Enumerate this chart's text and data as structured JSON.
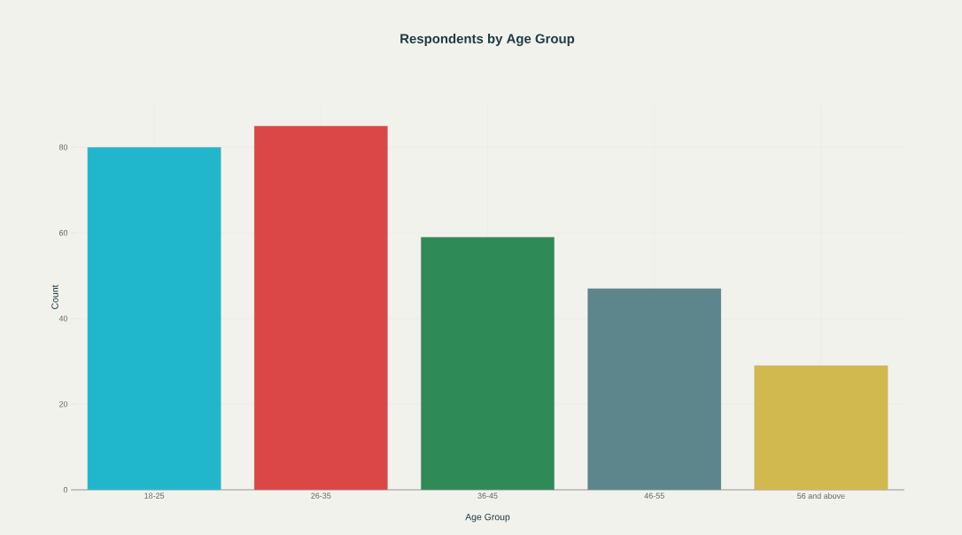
{
  "chart_data": {
    "type": "bar",
    "title": "Respondents by Age Group",
    "xlabel": "Age Group",
    "ylabel": "Count",
    "categories": [
      "18-25",
      "26-35",
      "36-45",
      "46-55",
      "56 and above"
    ],
    "values": [
      80,
      85,
      59,
      47,
      29
    ],
    "colors": [
      "#20b7cc",
      "#db4647",
      "#2e8a57",
      "#5c858c",
      "#d2b94f"
    ],
    "ylim": [
      0,
      90
    ],
    "yticks": [
      0,
      20,
      40,
      60,
      80
    ],
    "grid": true
  }
}
